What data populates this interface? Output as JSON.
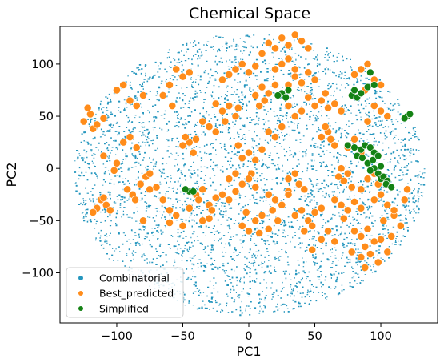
{
  "chart_data": {
    "type": "scatter",
    "title": "Chemical Space",
    "xlabel": "PC1",
    "ylabel": "PC2",
    "xlim": [
      -143,
      143
    ],
    "ylim": [
      -148,
      136
    ],
    "xticks": [
      -100,
      -50,
      0,
      50,
      100
    ],
    "yticks": [
      -100,
      -50,
      0,
      50,
      100
    ],
    "grid": false,
    "legend_position": "lower-left",
    "combinatorial_cloud": {
      "center": [
        0,
        -5
      ],
      "radius_x": 133,
      "radius_y": 135
    },
    "series": [
      {
        "name": "Combinatorial",
        "color": "#2596be",
        "marker": "small-point",
        "points": []
      },
      {
        "name": "Best_predicted",
        "color": "#ff8c1a",
        "marker": "circle",
        "points": [
          [
            -125,
            45
          ],
          [
            -120,
            52
          ],
          [
            -118,
            38
          ],
          [
            -115,
            42
          ],
          [
            -122,
            58
          ],
          [
            -110,
            48
          ],
          [
            -112,
            -30
          ],
          [
            -108,
            -35
          ],
          [
            -115,
            -38
          ],
          [
            -105,
            -40
          ],
          [
            -118,
            -42
          ],
          [
            -110,
            -28
          ],
          [
            -95,
            25
          ],
          [
            -90,
            30
          ],
          [
            -85,
            20
          ],
          [
            -88,
            -25
          ],
          [
            -92,
            -20
          ],
          [
            -82,
            -15
          ],
          [
            -86,
            -30
          ],
          [
            -100,
            75
          ],
          [
            -95,
            80
          ],
          [
            -80,
            70
          ],
          [
            -75,
            -20
          ],
          [
            -70,
            -18
          ],
          [
            -78,
            -8
          ],
          [
            -110,
            12
          ],
          [
            -100,
            5
          ],
          [
            -102,
            -2
          ],
          [
            -60,
            80
          ],
          [
            -55,
            95
          ],
          [
            -50,
            88
          ],
          [
            -45,
            92
          ],
          [
            -65,
            70
          ],
          [
            -58,
            60
          ],
          [
            -45,
            25
          ],
          [
            -40,
            28
          ],
          [
            -50,
            22
          ],
          [
            -42,
            15
          ],
          [
            -48,
            30
          ],
          [
            -40,
            -25
          ],
          [
            -35,
            -20
          ],
          [
            -38,
            -30
          ],
          [
            -30,
            -35
          ],
          [
            -25,
            -28
          ],
          [
            -28,
            -40
          ],
          [
            -35,
            -50
          ],
          [
            -30,
            -48
          ],
          [
            -20,
            -25
          ],
          [
            -15,
            -30
          ],
          [
            -10,
            -22
          ],
          [
            -45,
            -38
          ],
          [
            -20,
            55
          ],
          [
            -15,
            60
          ],
          [
            -10,
            50
          ],
          [
            -25,
            62
          ],
          [
            -18,
            45
          ],
          [
            -8,
            58
          ],
          [
            -15,
            90
          ],
          [
            -10,
            95
          ],
          [
            -5,
            100
          ],
          [
            0,
            92
          ],
          [
            5,
            98
          ],
          [
            -20,
            85
          ],
          [
            10,
            110
          ],
          [
            15,
            120
          ],
          [
            20,
            115
          ],
          [
            25,
            125
          ],
          [
            30,
            118
          ],
          [
            35,
            128
          ],
          [
            40,
            122
          ],
          [
            45,
            115
          ],
          [
            5,
            70
          ],
          [
            10,
            78
          ],
          [
            15,
            72
          ],
          [
            20,
            80
          ],
          [
            8,
            60
          ],
          [
            12,
            65
          ],
          [
            -5,
            10
          ],
          [
            0,
            15
          ],
          [
            5,
            8
          ],
          [
            10,
            18
          ],
          [
            -8,
            22
          ],
          [
            2,
            -5
          ],
          [
            -15,
            -10
          ],
          [
            -10,
            -5
          ],
          [
            -5,
            -15
          ],
          [
            0,
            -10
          ],
          [
            5,
            -18
          ],
          [
            15,
            -25
          ],
          [
            20,
            -30
          ],
          [
            25,
            -35
          ],
          [
            30,
            -22
          ],
          [
            18,
            -40
          ],
          [
            10,
            -45
          ],
          [
            22,
            -50
          ],
          [
            -5,
            -55
          ],
          [
            0,
            -60
          ],
          [
            5,
            -50
          ],
          [
            8,
            -62
          ],
          [
            15,
            -58
          ],
          [
            -2,
            -42
          ],
          [
            35,
            -45
          ],
          [
            40,
            -40
          ],
          [
            45,
            -50
          ],
          [
            50,
            -42
          ],
          [
            55,
            -38
          ],
          [
            48,
            -55
          ],
          [
            42,
            -60
          ],
          [
            30,
            -10
          ],
          [
            35,
            -5
          ],
          [
            38,
            -15
          ],
          [
            42,
            -20
          ],
          [
            30,
            -25
          ],
          [
            50,
            60
          ],
          [
            55,
            65
          ],
          [
            60,
            58
          ],
          [
            65,
            62
          ],
          [
            70,
            55
          ],
          [
            58,
            72
          ],
          [
            45,
            68
          ],
          [
            30,
            80
          ],
          [
            35,
            88
          ],
          [
            40,
            82
          ],
          [
            45,
            92
          ],
          [
            50,
            85
          ],
          [
            55,
            30
          ],
          [
            60,
            35
          ],
          [
            62,
            28
          ],
          [
            58,
            40
          ],
          [
            65,
            22
          ],
          [
            70,
            0
          ],
          [
            75,
            -5
          ],
          [
            72,
            -12
          ],
          [
            78,
            -18
          ],
          [
            68,
            -8
          ],
          [
            65,
            -30
          ],
          [
            70,
            -35
          ],
          [
            75,
            -40
          ],
          [
            80,
            -32
          ],
          [
            85,
            -38
          ],
          [
            72,
            -48
          ],
          [
            80,
            -60
          ],
          [
            85,
            -65
          ],
          [
            90,
            -58
          ],
          [
            95,
            -70
          ],
          [
            88,
            -75
          ],
          [
            100,
            -68
          ],
          [
            78,
            -80
          ],
          [
            85,
            -85
          ],
          [
            92,
            -82
          ],
          [
            98,
            -90
          ],
          [
            88,
            -95
          ],
          [
            95,
            -30
          ],
          [
            100,
            -25
          ],
          [
            105,
            -35
          ],
          [
            110,
            -45
          ],
          [
            102,
            -50
          ],
          [
            90,
            -10
          ],
          [
            95,
            -5
          ],
          [
            98,
            -15
          ],
          [
            85,
            -20
          ],
          [
            80,
            90
          ],
          [
            85,
            95
          ],
          [
            90,
            100
          ],
          [
            95,
            85
          ],
          [
            100,
            80
          ],
          [
            88,
            75
          ],
          [
            95,
            60
          ],
          [
            100,
            55
          ],
          [
            105,
            50
          ],
          [
            90,
            45
          ],
          [
            -75,
            -5
          ],
          [
            -80,
            -50
          ],
          [
            -60,
            -40
          ],
          [
            -65,
            -30
          ],
          [
            25,
            100
          ],
          [
            30,
            105
          ],
          [
            35,
            95
          ],
          [
            20,
            95
          ],
          [
            -30,
            40
          ],
          [
            -25,
            35
          ],
          [
            -35,
            45
          ],
          [
            60,
            -60
          ],
          [
            65,
            -70
          ],
          [
            55,
            -68
          ],
          [
            48,
            -78
          ],
          [
            110,
            -40
          ],
          [
            115,
            -55
          ],
          [
            108,
            -65
          ],
          [
            105,
            -80
          ],
          [
            -55,
            -45
          ],
          [
            -50,
            -55
          ],
          [
            -60,
            -52
          ],
          [
            75,
            20
          ],
          [
            80,
            28
          ],
          [
            85,
            15
          ],
          [
            40,
            55
          ],
          [
            35,
            50
          ],
          [
            30,
            60
          ],
          [
            -85,
            60
          ],
          [
            -90,
            65
          ],
          [
            118,
            -30
          ],
          [
            120,
            -20
          ],
          [
            15,
            35
          ],
          [
            20,
            30
          ],
          [
            25,
            40
          ]
        ]
      },
      {
        "name": "Simplified",
        "color": "#148214",
        "marker": "circle",
        "points": [
          [
            25,
            72
          ],
          [
            28,
            68
          ],
          [
            30,
            75
          ],
          [
            22,
            70
          ],
          [
            78,
            70
          ],
          [
            82,
            68
          ],
          [
            85,
            72
          ],
          [
            80,
            75
          ],
          [
            92,
            92
          ],
          [
            90,
            78
          ],
          [
            95,
            80
          ],
          [
            120,
            50
          ],
          [
            122,
            52
          ],
          [
            118,
            48
          ],
          [
            75,
            22
          ],
          [
            80,
            20
          ],
          [
            85,
            18
          ],
          [
            88,
            22
          ],
          [
            92,
            20
          ],
          [
            95,
            15
          ],
          [
            82,
            12
          ],
          [
            86,
            10
          ],
          [
            90,
            5
          ],
          [
            94,
            8
          ],
          [
            98,
            12
          ],
          [
            95,
            0
          ],
          [
            98,
            -5
          ],
          [
            100,
            -10
          ],
          [
            102,
            -8
          ],
          [
            105,
            -12
          ],
          [
            104,
            -15
          ],
          [
            108,
            -18
          ],
          [
            100,
            2
          ],
          [
            92,
            -2
          ],
          [
            -45,
            -22
          ],
          [
            -42,
            -22
          ],
          [
            -48,
            -20
          ]
        ]
      }
    ]
  }
}
